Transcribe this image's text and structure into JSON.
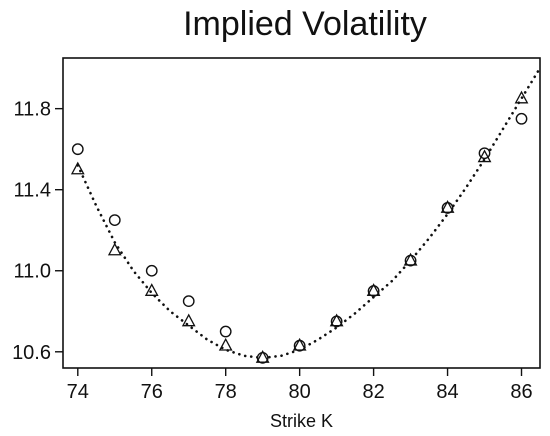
{
  "chart_data": {
    "type": "scatter",
    "title": "Implied Volatility",
    "xlabel": "Strike K",
    "ylabel": "",
    "xlim": [
      73.6,
      86.5
    ],
    "ylim": [
      10.52,
      12.05
    ],
    "x_ticks": [
      74,
      76,
      78,
      80,
      82,
      84,
      86
    ],
    "y_ticks": [
      10.6,
      11.0,
      11.4,
      11.8
    ],
    "y_tick_labels": [
      "10.6",
      "11.0",
      "11.4",
      "11.8"
    ],
    "grid": false,
    "series": [
      {
        "marker": "circle",
        "x": [
          74,
          75,
          76,
          77,
          78,
          79,
          80,
          81,
          82,
          83,
          84,
          85,
          86
        ],
        "y": [
          11.6,
          11.25,
          11.0,
          10.85,
          10.7,
          10.57,
          10.63,
          10.75,
          10.9,
          11.05,
          11.31,
          11.58,
          11.75
        ]
      },
      {
        "marker": "triangle",
        "x": [
          74,
          75,
          76,
          77,
          78,
          79,
          80,
          81,
          82,
          83,
          84,
          85,
          86
        ],
        "y": [
          11.5,
          11.1,
          10.9,
          10.75,
          10.63,
          10.57,
          10.63,
          10.75,
          10.9,
          11.05,
          11.31,
          11.56,
          11.85
        ]
      },
      {
        "marker": "dotted-line",
        "x": [
          74,
          74.5,
          75,
          75.5,
          76,
          76.5,
          77,
          77.5,
          78,
          78.5,
          79,
          79.5,
          80,
          80.5,
          81,
          81.5,
          82,
          82.5,
          83,
          83.5,
          84,
          84.5,
          85,
          85.5,
          86,
          86.5
        ],
        "y": [
          11.52,
          11.32,
          11.14,
          11.0,
          10.89,
          10.8,
          10.73,
          10.66,
          10.61,
          10.58,
          10.57,
          10.58,
          10.61,
          10.66,
          10.72,
          10.79,
          10.87,
          10.95,
          11.05,
          11.16,
          11.28,
          11.41,
          11.55,
          11.7,
          11.85,
          12.0
        ]
      }
    ]
  }
}
